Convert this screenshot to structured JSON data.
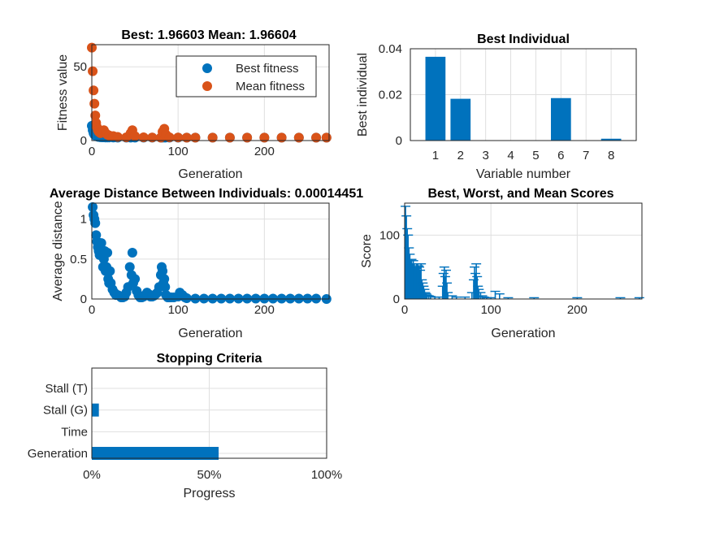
{
  "colors": {
    "blue": "#0072BD",
    "orange": "#D95319",
    "grid": "#dfdfdf",
    "axis": "#262626"
  },
  "chart_data": [
    {
      "id": "fitness",
      "type": "scatter",
      "title": "Best: 1.96603 Mean: 1.96604",
      "xlabel": "Generation",
      "ylabel": "Fitness value",
      "xlim": [
        0,
        275
      ],
      "ylim": [
        0,
        65
      ],
      "xticks": [
        0,
        100,
        200
      ],
      "yticks": [
        0,
        50
      ],
      "grid": true,
      "legend_position": "top-right",
      "series": [
        {
          "name": "Best fitness",
          "color": "#0072BD",
          "x": [
            0,
            1,
            2,
            3,
            4,
            5,
            6,
            7,
            8,
            9,
            10,
            12,
            14,
            16,
            18,
            20,
            25,
            30,
            40,
            45,
            50,
            60,
            70,
            80,
            82,
            85,
            90,
            100,
            110,
            120,
            140,
            160,
            180,
            200,
            220,
            240,
            260,
            272
          ],
          "y": [
            10,
            7,
            5,
            4,
            3.5,
            3,
            2.8,
            2.6,
            2.5,
            2.4,
            2.3,
            2.2,
            2.2,
            2.1,
            2.1,
            2.1,
            2.05,
            2.0,
            2.0,
            2.0,
            2.0,
            1.99,
            1.98,
            1.98,
            1.98,
            1.97,
            1.97,
            1.97,
            1.97,
            1.97,
            1.97,
            1.97,
            1.97,
            1.966,
            1.966,
            1.966,
            1.966,
            1.966
          ]
        },
        {
          "name": "Mean fitness",
          "color": "#D95319",
          "x": [
            0,
            1,
            2,
            3,
            4,
            5,
            6,
            7,
            8,
            9,
            10,
            12,
            14,
            16,
            18,
            20,
            25,
            30,
            40,
            45,
            47,
            50,
            60,
            70,
            80,
            82,
            84,
            86,
            90,
            100,
            110,
            120,
            140,
            160,
            180,
            200,
            220,
            240,
            260,
            272
          ],
          "y": [
            63,
            47,
            34,
            25,
            17,
            12,
            9,
            7,
            6,
            5.5,
            5,
            6,
            7,
            5,
            4,
            3.5,
            3,
            2.5,
            2.2,
            5,
            7,
            3,
            2.2,
            2.1,
            2,
            6,
            8,
            4,
            2.2,
            2.1,
            2.0,
            2.0,
            2.0,
            2.0,
            2.0,
            1.97,
            1.97,
            1.97,
            1.97,
            1.97
          ]
        }
      ]
    },
    {
      "id": "best-individual",
      "type": "bar",
      "title": "Best Individual",
      "xlabel": "Variable number",
      "ylabel": "Best individual",
      "categories": [
        "1",
        "2",
        "3",
        "4",
        "5",
        "6",
        "7",
        "8"
      ],
      "values": [
        0.0365,
        0.0182,
        0,
        0,
        0,
        0.0185,
        0,
        0.0008
      ],
      "ylim": [
        0,
        0.04
      ],
      "yticks": [
        0,
        0.02,
        0.04
      ],
      "grid": true
    },
    {
      "id": "avg-distance",
      "type": "scatter",
      "title": "Average Distance Between Individuals: 0.00014451",
      "xlabel": "Generation",
      "ylabel": "Average distance",
      "xlim": [
        0,
        275
      ],
      "ylim": [
        0,
        1.2
      ],
      "xticks": [
        0,
        100,
        200
      ],
      "yticks": [
        0,
        0.5,
        1
      ],
      "grid": true,
      "series": [
        {
          "name": "",
          "color": "#0072BD",
          "x": [
            1,
            2,
            3,
            4,
            5,
            6,
            7,
            8,
            9,
            10,
            11,
            12,
            13,
            14,
            15,
            16,
            17,
            18,
            19,
            20,
            21,
            22,
            24,
            26,
            28,
            30,
            32,
            34,
            36,
            38,
            40,
            42,
            44,
            46,
            47,
            48,
            50,
            52,
            54,
            56,
            58,
            60,
            62,
            64,
            66,
            68,
            70,
            72,
            74,
            76,
            78,
            80,
            81,
            82,
            83,
            84,
            85,
            86,
            88,
            90,
            92,
            95,
            100,
            102,
            105,
            108,
            110,
            120,
            130,
            140,
            150,
            160,
            170,
            180,
            190,
            200,
            210,
            220,
            230,
            240,
            250,
            260,
            272
          ],
          "y": [
            1.15,
            1.05,
            1.0,
            0.95,
            0.8,
            0.72,
            0.65,
            0.6,
            0.55,
            0.6,
            0.7,
            0.55,
            0.4,
            0.5,
            0.6,
            0.35,
            0.4,
            0.58,
            0.25,
            0.2,
            0.35,
            0.2,
            0.12,
            0.08,
            0.05,
            0.05,
            0.04,
            0.02,
            0.02,
            0.03,
            0.08,
            0.15,
            0.4,
            0.3,
            0.58,
            0.2,
            0.25,
            0.1,
            0.05,
            0.02,
            0.02,
            0.03,
            0.05,
            0.08,
            0.06,
            0.03,
            0.03,
            0.04,
            0.06,
            0.08,
            0.15,
            0.3,
            0.4,
            0.35,
            0.2,
            0.25,
            0.15,
            0.05,
            0.02,
            0.02,
            0.02,
            0.02,
            0.03,
            0.08,
            0.05,
            0.02,
            0.01,
            0.005,
            0.005,
            0.005,
            0.005,
            0.005,
            0.005,
            0.005,
            0.005,
            0.005,
            0.005,
            0.005,
            0.005,
            0.005,
            0.005,
            0.005,
            0.0001
          ]
        }
      ]
    },
    {
      "id": "scores",
      "type": "bar",
      "title": "Best, Worst, and Mean Scores",
      "xlabel": "Generation",
      "ylabel": "Score",
      "xlim": [
        0,
        275
      ],
      "ylim": [
        0,
        150
      ],
      "xticks": [
        0,
        100,
        200
      ],
      "yticks": [
        0,
        100
      ],
      "grid": true,
      "series": [
        {
          "name": "",
          "color": "#0072BD",
          "x": [
            1,
            2,
            3,
            4,
            5,
            6,
            7,
            8,
            9,
            10,
            11,
            12,
            13,
            14,
            15,
            16,
            17,
            18,
            19,
            20,
            21,
            22,
            23,
            24,
            25,
            26,
            28,
            30,
            35,
            40,
            44,
            45,
            46,
            47,
            48,
            49,
            50,
            55,
            60,
            70,
            78,
            80,
            81,
            82,
            83,
            84,
            85,
            86,
            88,
            90,
            92,
            95,
            100,
            105,
            110,
            120,
            150,
            200,
            250,
            272
          ],
          "y": [
            145,
            130,
            110,
            100,
            80,
            70,
            60,
            62,
            55,
            60,
            55,
            50,
            48,
            55,
            55,
            52,
            50,
            45,
            55,
            30,
            25,
            20,
            15,
            10,
            8,
            6,
            5,
            4,
            3,
            3,
            20,
            40,
            50,
            35,
            45,
            25,
            10,
            5,
            3,
            3,
            10,
            30,
            50,
            40,
            55,
            35,
            20,
            15,
            10,
            5,
            3,
            2,
            2,
            12,
            8,
            2,
            2,
            2,
            2,
            2
          ]
        }
      ]
    },
    {
      "id": "stopping",
      "type": "bar",
      "orientation": "horizontal",
      "title": "Stopping Criteria",
      "xlabel": "Progress",
      "categories": [
        "Stall (T)",
        "Stall (G)",
        "Time",
        "Generation"
      ],
      "values": [
        0,
        3,
        0,
        54
      ],
      "xlim": [
        0,
        100
      ],
      "xticks": [
        "0%",
        "50%",
        "100%"
      ],
      "grid": true
    }
  ]
}
